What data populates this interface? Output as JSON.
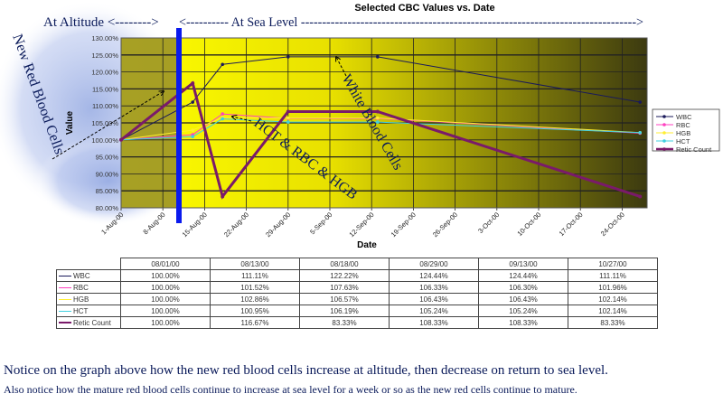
{
  "chart_data": {
    "type": "line",
    "title": "Selected CBC Values  vs. Date",
    "xlabel": "Date",
    "ylabel": "Value",
    "ylim": [
      80,
      130
    ],
    "yticks": [
      "80.00%",
      "85.00%",
      "90.00%",
      "95.00%",
      "100.00%",
      "105.00%",
      "110.00%",
      "115.00%",
      "120.00%",
      "125.00%",
      "130.00%"
    ],
    "xticks": [
      "1-Aug-00",
      "8-Aug-00",
      "15-Aug-00",
      "22-Aug-00",
      "29-Aug-00",
      "5-Sep-00",
      "12-Sep-00",
      "19-Sep-00",
      "26-Sep-00",
      "3-Oct-00",
      "10-Oct-00",
      "17-Oct-00",
      "24-Oct-00"
    ],
    "grid": true,
    "legend_placement": "right",
    "dates": [
      "08/01/00",
      "08/13/00",
      "08/18/00",
      "08/29/00",
      "09/13/00",
      "10/27/00"
    ],
    "series": [
      {
        "name": "WBC",
        "color": "#1a1a5a",
        "values": [
          100.0,
          111.11,
          122.22,
          124.44,
          124.44,
          111.11
        ],
        "labels": [
          "100.00%",
          "111.11%",
          "122.22%",
          "124.44%",
          "124.44%",
          "111.11%"
        ]
      },
      {
        "name": "RBC",
        "color": "#ff40c0",
        "values": [
          100.0,
          101.52,
          107.63,
          106.33,
          106.3,
          101.96
        ],
        "labels": [
          "100.00%",
          "101.52%",
          "107.63%",
          "106.33%",
          "106.30%",
          "101.96%"
        ]
      },
      {
        "name": "HGB",
        "color": "#ffee33",
        "values": [
          100.0,
          102.86,
          106.57,
          106.43,
          106.43,
          102.14
        ],
        "labels": [
          "100.00%",
          "102.86%",
          "106.57%",
          "106.43%",
          "106.43%",
          "102.14%"
        ]
      },
      {
        "name": "HCT",
        "color": "#40d0e0",
        "values": [
          100.0,
          100.95,
          106.19,
          105.24,
          105.24,
          102.14
        ],
        "labels": [
          "100.00%",
          "100.95%",
          "106.19%",
          "105.24%",
          "105.24%",
          "102.14%"
        ]
      },
      {
        "name": "Retic Count",
        "color": "#7a1a6a",
        "values": [
          100.0,
          116.67,
          83.33,
          108.33,
          108.33,
          83.33
        ],
        "labels": [
          "100.00%",
          "116.67%",
          "83.33%",
          "108.33%",
          "108.33%",
          "83.33%"
        ]
      }
    ]
  },
  "annotations": {
    "altitude": "At Altitude <-------->",
    "sea_level": "<---------- At Sea Level ------------------------------------------------------------------------------->",
    "new_rbc": "New Red Blood Cells",
    "wbc": "White Blood Cells",
    "hct_rbc_hgb": "HCT & RBC & HGB"
  },
  "notes": {
    "line1": "Notice  on the graph above how the new red blood cells increase at altitude, then decrease on return to sea level.",
    "line2": "Also notice how the mature red blood cells continue to increase at sea level for a week or so as the new red cells continue to mature."
  },
  "colors": {
    "altitude_marker": "#0a1aee",
    "plot_bg_light": "#ffff00",
    "plot_bg_dark": "#3a3a10",
    "annotation": "#0a1a5a"
  }
}
